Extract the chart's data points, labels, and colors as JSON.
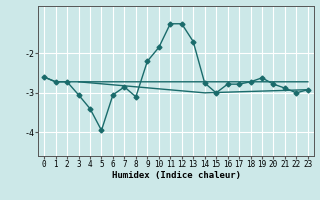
{
  "xlabel": "Humidex (Indice chaleur)",
  "bg_color": "#cce8e8",
  "line_color": "#1a6b6b",
  "grid_color": "#ffffff",
  "xlim": [
    -0.5,
    23.5
  ],
  "ylim": [
    -4.6,
    -0.8
  ],
  "yticks": [
    -4,
    -3,
    -2
  ],
  "xticks": [
    0,
    1,
    2,
    3,
    4,
    5,
    6,
    7,
    8,
    9,
    10,
    11,
    12,
    13,
    14,
    15,
    16,
    17,
    18,
    19,
    20,
    21,
    22,
    23
  ],
  "series1_x": [
    0,
    1,
    2,
    3,
    4,
    5,
    6,
    7,
    8,
    9,
    10,
    11,
    12,
    13,
    14,
    15,
    16,
    17,
    18,
    19,
    20,
    21,
    22,
    23
  ],
  "series1_y": [
    -2.6,
    -2.72,
    -2.72,
    -3.05,
    -3.4,
    -3.95,
    -3.05,
    -2.85,
    -3.1,
    -2.2,
    -1.85,
    -1.25,
    -1.25,
    -1.7,
    -2.75,
    -3.0,
    -2.78,
    -2.78,
    -2.72,
    -2.62,
    -2.78,
    -2.88,
    -3.0,
    -2.92
  ],
  "series2_x": [
    0,
    1,
    2,
    3,
    4,
    5,
    6,
    7,
    8,
    9,
    10,
    11,
    12,
    13,
    14,
    15,
    16,
    17,
    18,
    19,
    20,
    21,
    22,
    23
  ],
  "series2_y": [
    -2.6,
    -2.72,
    -2.72,
    -2.72,
    -2.72,
    -2.72,
    -2.72,
    -2.72,
    -2.72,
    -2.72,
    -2.72,
    -2.72,
    -2.72,
    -2.72,
    -2.72,
    -2.72,
    -2.72,
    -2.72,
    -2.72,
    -2.72,
    -2.72,
    -2.72,
    -2.72,
    -2.72
  ],
  "series3_x": [
    3,
    14,
    23
  ],
  "series3_y": [
    -2.72,
    -3.0,
    -2.92
  ],
  "marker_size": 2.5,
  "line_width": 1.0,
  "tick_fontsize": 5.5,
  "xlabel_fontsize": 6.5
}
